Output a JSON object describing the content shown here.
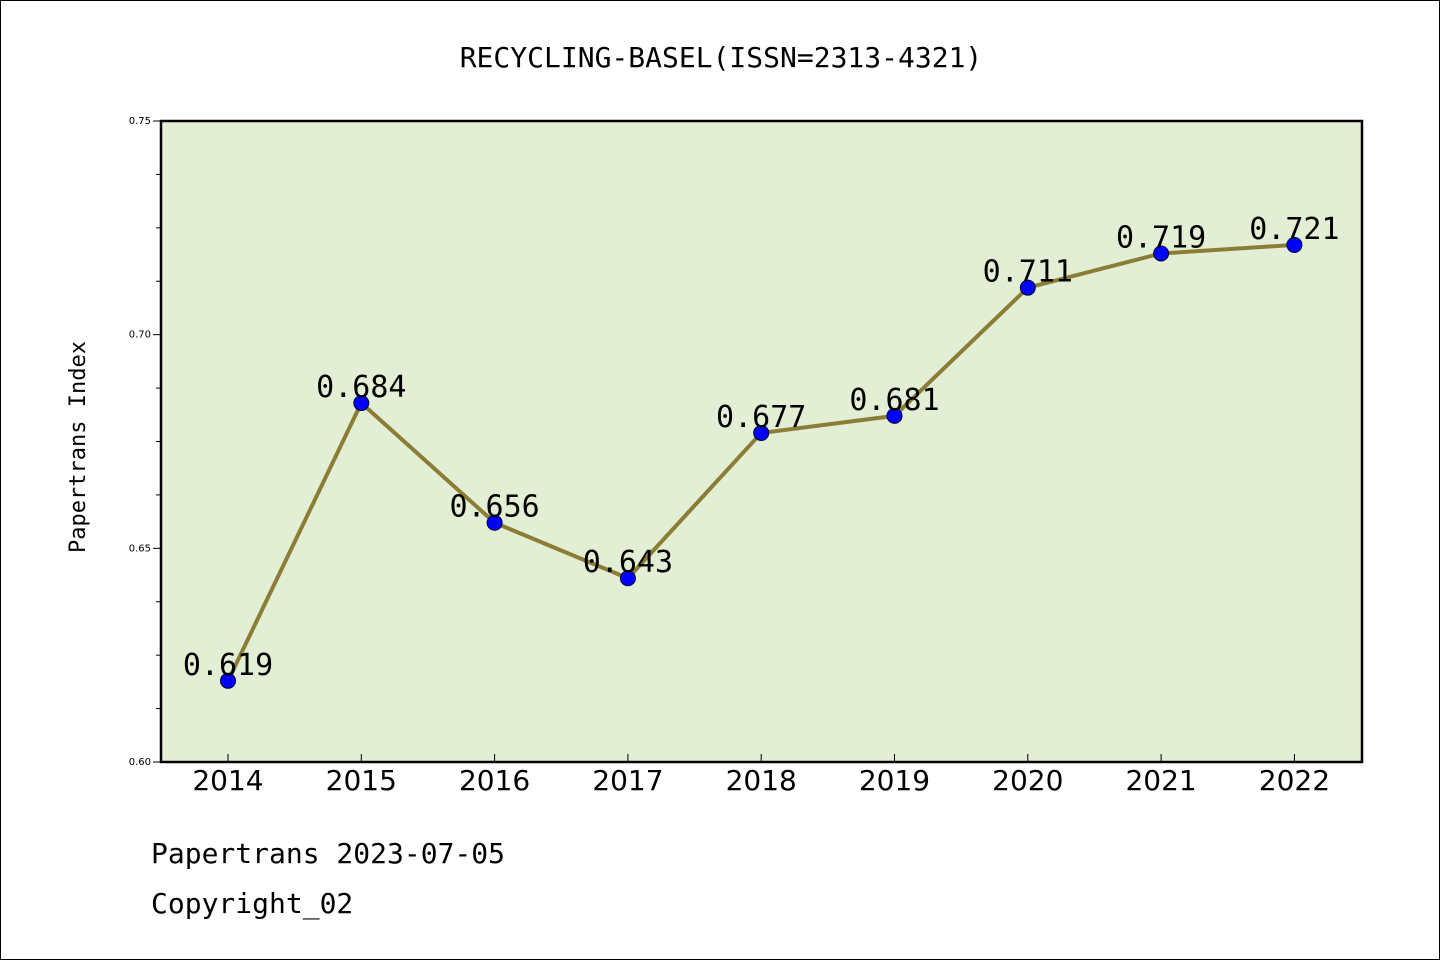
{
  "chart_data": {
    "type": "line",
    "title": "RECYCLING-BASEL(ISSN=2313-4321)",
    "ylabel": "Papertrans Index",
    "xlabel": "",
    "categories": [
      "2014",
      "2015",
      "2016",
      "2017",
      "2018",
      "2019",
      "2020",
      "2021",
      "2022"
    ],
    "series": [
      {
        "values": [
          0.619,
          0.684,
          0.656,
          0.643,
          0.677,
          0.681,
          0.711,
          0.719,
          0.721
        ],
        "labels": [
          "0.619",
          "0.684",
          "0.656",
          "0.643",
          "0.677",
          "0.681",
          "0.711",
          "0.719",
          "0.721"
        ]
      }
    ],
    "ylim": [
      0.6,
      0.75
    ],
    "yticks": [
      "0.60",
      "0.65",
      "0.70",
      "0.75"
    ],
    "grid": false,
    "colors": {
      "line": "#8B7D35",
      "marker": "#0000FF",
      "plot_background": "#E2EFD5"
    }
  },
  "footer": {
    "line1": "Papertrans 2023-07-05",
    "line2": "Copyright_02"
  }
}
